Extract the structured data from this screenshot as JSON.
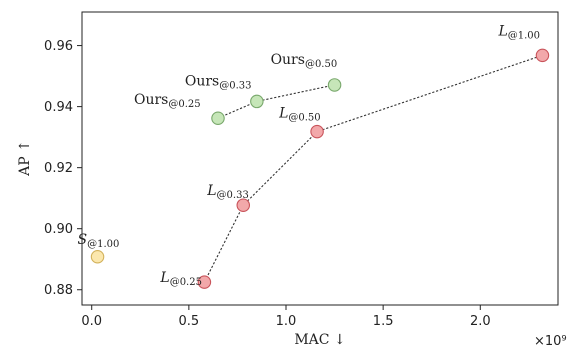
{
  "chart_data": {
    "type": "scatter",
    "xlabel": "MAC ↓",
    "ylabel": "AP ↑",
    "x_scale_label": "×10⁹",
    "xlim": [
      -0.05,
      2.4
    ],
    "ylim": [
      0.875,
      0.971
    ],
    "xticks": [
      0.0,
      0.5,
      1.0,
      1.5,
      2.0
    ],
    "xtick_labels": [
      "0.0",
      "0.5",
      "1.0",
      "1.5",
      "2.0"
    ],
    "yticks": [
      0.88,
      0.9,
      0.92,
      0.94,
      0.96
    ],
    "ytick_labels": [
      "0.88",
      "0.90",
      "0.92",
      "0.94",
      "0.96"
    ],
    "grid": false,
    "series": [
      {
        "color": "#f2a8aa",
        "edge": "#c9545b",
        "connected": true,
        "points": [
          {
            "x": 0.58,
            "y": 0.8825,
            "base": "L",
            "sub": "@0.25"
          },
          {
            "x": 0.78,
            "y": 0.9077,
            "base": "L",
            "sub": "@0.33"
          },
          {
            "x": 1.16,
            "y": 0.9318,
            "base": "L",
            "sub": "@0.50"
          },
          {
            "x": 2.32,
            "y": 0.9568,
            "base": "L",
            "sub": "@1.00"
          }
        ]
      },
      {
        "color": "#c6e6b8",
        "edge": "#79a86c",
        "connected": true,
        "points": [
          {
            "x": 0.65,
            "y": 0.9362,
            "base": "Ours",
            "sub": "@0.25"
          },
          {
            "x": 0.85,
            "y": 0.9417,
            "base": "Ours",
            "sub": "@0.33"
          },
          {
            "x": 1.25,
            "y": 0.9471,
            "base": "Ours",
            "sub": "@0.50"
          }
        ]
      },
      {
        "color": "#fbe7ad",
        "edge": "#d2b15a",
        "connected": false,
        "points": [
          {
            "x": 0.03,
            "y": 0.8908,
            "base": "S",
            "sub": "@1.00"
          }
        ]
      }
    ]
  }
}
